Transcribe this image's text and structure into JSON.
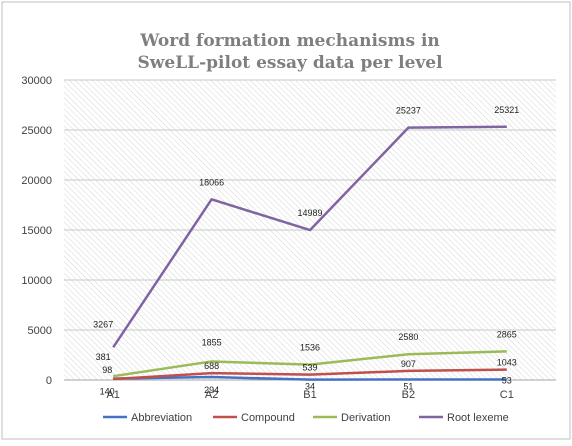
{
  "chart_data": {
    "type": "line",
    "title": [
      "Word formation mechanisms in",
      "SweLL-pilot essay data per level"
    ],
    "categories": [
      "A1",
      "A2",
      "B1",
      "B2",
      "C1"
    ],
    "ylim": [
      0,
      30000
    ],
    "yticks": [
      "0",
      "5000",
      "10000",
      "15000",
      "20000",
      "25000",
      "30000"
    ],
    "grid": true,
    "legend_position": "bottom",
    "series": [
      {
        "name": "Abbreviation",
        "color": "#4472c4",
        "values": [
          140,
          294,
          34,
          51,
          53
        ]
      },
      {
        "name": "Compound",
        "color": "#c0504d",
        "values": [
          98,
          688,
          539,
          907,
          1043
        ]
      },
      {
        "name": "Derivation",
        "color": "#9bbb59",
        "values": [
          381,
          1855,
          1536,
          2580,
          2865
        ]
      },
      {
        "name": "Root lexeme",
        "color": "#8064a2",
        "values": [
          3267,
          18066,
          14989,
          25237,
          25321
        ]
      }
    ],
    "data_labels": {
      "Abbreviation": [
        "140",
        "294",
        "34",
        "51",
        "53"
      ],
      "Compound": [
        "98",
        "688",
        "539",
        "907",
        "1043"
      ],
      "Derivation": [
        "381",
        "1855",
        "1536",
        "2580",
        "2865"
      ],
      "Root lexeme": [
        "3267",
        "18066",
        "14989",
        "25237",
        "25321"
      ]
    }
  }
}
